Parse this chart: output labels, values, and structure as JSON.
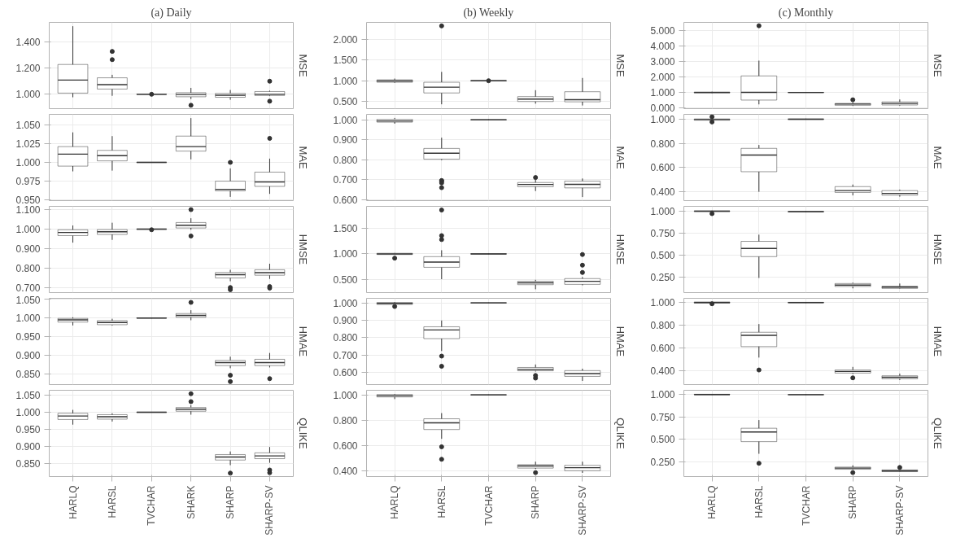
{
  "chart_data": [
    {
      "type": "box",
      "title": "(a) Daily",
      "ylabel": "MSE",
      "categories": [
        null,
        null,
        null,
        null,
        null,
        null
      ],
      "ylim": [
        0.89,
        1.55
      ],
      "yticks": [
        {
          "value": 1.0,
          "label": "1.000"
        },
        {
          "value": 1.2,
          "label": "1.200"
        },
        {
          "value": 1.4,
          "label": "1.400"
        }
      ],
      "grid": true,
      "tick_labels": "y",
      "boxes": [
        {
          "low": 0.977,
          "q1": 1.009,
          "median": 1.109,
          "q3": 1.228,
          "high": 1.521
        },
        {
          "low": 0.988,
          "q1": 1.04,
          "median": 1.074,
          "q3": 1.126,
          "high": 1.149,
          "outliers": [
            1.265,
            1.328
          ]
        },
        {
          "low": 0.998,
          "q1": 0.999,
          "median": 1.0,
          "q3": 1.001,
          "high": 1.002,
          "outliers": [
            1.0
          ]
        },
        {
          "low": 0.963,
          "q1": 0.981,
          "median": 0.998,
          "q3": 1.012,
          "high": 1.049,
          "outliers": [
            0.916
          ]
        },
        {
          "low": 0.958,
          "q1": 0.977,
          "median": 0.993,
          "q3": 1.007,
          "high": 1.033
        },
        {
          "low": 0.986,
          "q1": 0.991,
          "median": 1.0,
          "q3": 1.021,
          "high": 1.028,
          "outliers": [
            1.1,
            0.947
          ]
        }
      ]
    },
    {
      "type": "box",
      "title": "(b) Weekly",
      "ylabel": "MSE",
      "categories": [
        null,
        null,
        null,
        null,
        null
      ],
      "ylim": [
        0.322,
        2.416
      ],
      "yticks": [
        {
          "value": 0.5,
          "label": "0.500"
        },
        {
          "value": 1.0,
          "label": "1.000"
        },
        {
          "value": 1.5,
          "label": "1.500"
        },
        {
          "value": 2.0,
          "label": "2.000"
        }
      ],
      "grid": true,
      "tick_labels": "y",
      "boxes": [
        {
          "low": 0.948,
          "q1": 0.963,
          "median": 0.993,
          "q3": 1.022,
          "high": 1.052
        },
        {
          "low": 0.428,
          "q1": 0.703,
          "median": 0.844,
          "q3": 0.963,
          "high": 1.215,
          "outliers": [
            2.33
          ]
        },
        {
          "low": 0.99,
          "q1": 0.995,
          "median": 1.0,
          "q3": 1.005,
          "high": 1.01,
          "outliers": [
            1.0
          ]
        },
        {
          "low": 0.443,
          "q1": 0.495,
          "median": 0.554,
          "q3": 0.614,
          "high": 0.77
        },
        {
          "low": 0.399,
          "q1": 0.488,
          "median": 0.539,
          "q3": 0.733,
          "high": 1.067
        }
      ]
    },
    {
      "type": "box",
      "title": "(c) Monthly",
      "ylabel": "MSE",
      "categories": [
        null,
        null,
        null,
        null,
        null
      ],
      "ylim": [
        -0.04,
        5.512
      ],
      "yticks": [
        {
          "value": 0,
          "label": "0.000"
        },
        {
          "value": 1,
          "label": "1.000"
        },
        {
          "value": 2,
          "label": "2.000"
        },
        {
          "value": 3,
          "label": "3.000"
        },
        {
          "value": 4,
          "label": "4.000"
        },
        {
          "value": 5,
          "label": "5.000"
        }
      ],
      "grid": true,
      "tick_labels": "y",
      "boxes": [
        {
          "low": 0.95,
          "q1": 0.97,
          "median": 1.0,
          "q3": 1.03,
          "high": 1.05
        },
        {
          "low": 0.236,
          "q1": 0.512,
          "median": 1.004,
          "q3": 2.067,
          "high": 3.051,
          "outliers": [
            5.295
          ]
        },
        {
          "low": 0.98,
          "q1": 0.99,
          "median": 1.0,
          "q3": 1.01,
          "high": 1.02
        },
        {
          "low": 0.138,
          "q1": 0.177,
          "median": 0.256,
          "q3": 0.295,
          "high": 0.374,
          "outliers": [
            0.531
          ]
        },
        {
          "low": 0.157,
          "q1": 0.197,
          "median": 0.295,
          "q3": 0.394,
          "high": 0.551
        }
      ]
    },
    {
      "type": "box",
      "ylabel": "MAE",
      "categories": [
        null,
        null,
        null,
        null,
        null,
        null
      ],
      "ylim": [
        0.949,
        1.064
      ],
      "yticks": [
        {
          "value": 0.95,
          "label": "0.950"
        },
        {
          "value": 0.975,
          "label": "0.975"
        },
        {
          "value": 1.0,
          "label": "1.000"
        },
        {
          "value": 1.025,
          "label": "1.025"
        },
        {
          "value": 1.05,
          "label": "1.050"
        }
      ],
      "grid": true,
      "tick_labels": "y",
      "boxes": [
        {
          "low": 0.988,
          "q1": 0.995,
          "median": 1.011,
          "q3": 1.021,
          "high": 1.04
        },
        {
          "low": 0.989,
          "q1": 1.002,
          "median": 1.009,
          "q3": 1.016,
          "high": 1.035
        },
        {
          "low": 0.9995,
          "q1": 0.9998,
          "median": 1.0,
          "q3": 1.0002,
          "high": 1.0005
        },
        {
          "low": 1.004,
          "q1": 1.015,
          "median": 1.021,
          "q3": 1.035,
          "high": 1.059
        },
        {
          "low": 0.954,
          "q1": 0.962,
          "median": 0.964,
          "q3": 0.975,
          "high": 0.992,
          "outliers": [
            1.0
          ]
        },
        {
          "low": 0.958,
          "q1": 0.968,
          "median": 0.974,
          "q3": 0.987,
          "high": 1.005,
          "outliers": [
            1.032
          ]
        }
      ]
    },
    {
      "type": "box",
      "ylabel": "MAE",
      "categories": [
        null,
        null,
        null,
        null,
        null
      ],
      "ylim": [
        0.594,
        1.027
      ],
      "yticks": [
        {
          "value": 0.6,
          "label": "0.600"
        },
        {
          "value": 0.7,
          "label": "0.700"
        },
        {
          "value": 0.8,
          "label": "0.800"
        },
        {
          "value": 0.9,
          "label": "0.900"
        },
        {
          "value": 1.0,
          "label": "1.000"
        }
      ],
      "grid": true,
      "tick_labels": "y",
      "boxes": [
        {
          "low": 0.98,
          "q1": 0.988,
          "median": 0.994,
          "q3": 1.002,
          "high": 1.009
        },
        {
          "low": 0.797,
          "q1": 0.802,
          "median": 0.832,
          "q3": 0.856,
          "high": 0.91,
          "outliers": [
            0.695,
            0.692,
            0.683,
            0.659
          ]
        },
        {
          "low": 0.998,
          "q1": 0.999,
          "median": 1.0,
          "q3": 1.001,
          "high": 1.002
        },
        {
          "low": 0.642,
          "q1": 0.664,
          "median": 0.675,
          "q3": 0.685,
          "high": 0.699,
          "outliers": [
            0.71
          ]
        },
        {
          "low": 0.612,
          "q1": 0.658,
          "median": 0.676,
          "q3": 0.692,
          "high": 0.705
        }
      ]
    },
    {
      "type": "box",
      "ylabel": "MAE",
      "categories": [
        null,
        null,
        null,
        null,
        null
      ],
      "ylim": [
        0.327,
        1.04
      ],
      "yticks": [
        {
          "value": 0.4,
          "label": "0.400"
        },
        {
          "value": 0.6,
          "label": "0.600"
        },
        {
          "value": 0.8,
          "label": "0.800"
        },
        {
          "value": 1.0,
          "label": "1.000"
        }
      ],
      "grid": true,
      "tick_labels": "y",
      "boxes": [
        {
          "low": 0.99,
          "q1": 0.992,
          "median": 0.997,
          "q3": 1.002,
          "high": 1.008,
          "outliers": [
            1.02,
            0.977
          ]
        },
        {
          "low": 0.4,
          "q1": 0.566,
          "median": 0.704,
          "q3": 0.759,
          "high": 0.787
        },
        {
          "low": 0.996,
          "q1": 0.998,
          "median": 1.0,
          "q3": 1.002,
          "high": 1.004
        },
        {
          "low": 0.37,
          "q1": 0.395,
          "median": 0.41,
          "q3": 0.443,
          "high": 0.46
        },
        {
          "low": 0.36,
          "q1": 0.372,
          "median": 0.387,
          "q3": 0.41,
          "high": 0.418
        }
      ]
    },
    {
      "type": "box",
      "ylabel": "HMSE",
      "categories": [
        null,
        null,
        null,
        null,
        null,
        null
      ],
      "ylim": [
        0.675,
        1.117
      ],
      "yticks": [
        {
          "value": 0.7,
          "label": "0.700"
        },
        {
          "value": 0.8,
          "label": "0.800"
        },
        {
          "value": 0.9,
          "label": "0.900"
        },
        {
          "value": 1.0,
          "label": "1.000"
        },
        {
          "value": 1.1,
          "label": "1.100"
        }
      ],
      "grid": true,
      "tick_labels": "y",
      "boxes": [
        {
          "low": 0.931,
          "q1": 0.967,
          "median": 0.983,
          "q3": 0.997,
          "high": 1.019
        },
        {
          "low": 0.945,
          "q1": 0.973,
          "median": 0.987,
          "q3": 0.998,
          "high": 1.033
        },
        {
          "low": 0.998,
          "q1": 0.999,
          "median": 1.0,
          "q3": 1.001,
          "high": 1.002,
          "outliers": [
            0.997
          ]
        },
        {
          "low": 0.997,
          "q1": 1.006,
          "median": 1.02,
          "q3": 1.034,
          "high": 1.056,
          "outliers": [
            1.1,
            0.965
          ]
        },
        {
          "low": 0.733,
          "q1": 0.75,
          "median": 0.767,
          "q3": 0.778,
          "high": 0.792,
          "outliers": [
            0.701,
            0.69
          ]
        },
        {
          "low": 0.745,
          "q1": 0.764,
          "median": 0.777,
          "q3": 0.792,
          "high": 0.823,
          "outliers": [
            0.706,
            0.698
          ]
        }
      ]
    },
    {
      "type": "box",
      "ylabel": "HMSE",
      "categories": [
        null,
        null,
        null,
        null,
        null
      ],
      "ylim": [
        0.235,
        1.94
      ],
      "yticks": [
        {
          "value": 0.5,
          "label": "0.500"
        },
        {
          "value": 1.0,
          "label": "1.000"
        },
        {
          "value": 1.5,
          "label": "1.500"
        }
      ],
      "grid": true,
      "tick_labels": "y",
      "boxes": [
        {
          "low": 0.982,
          "q1": 0.988,
          "median": 1.0,
          "q3": 1.012,
          "high": 1.018,
          "outliers": [
            0.916
          ]
        },
        {
          "low": 0.5,
          "q1": 0.735,
          "median": 0.837,
          "q3": 0.946,
          "high": 1.072,
          "outliers": [
            1.867,
            1.361,
            1.283
          ]
        },
        {
          "low": 0.99,
          "q1": 0.995,
          "median": 1.0,
          "q3": 1.005,
          "high": 1.01
        },
        {
          "low": 0.301,
          "q1": 0.392,
          "median": 0.428,
          "q3": 0.458,
          "high": 0.488
        },
        {
          "low": 0.38,
          "q1": 0.398,
          "median": 0.458,
          "q3": 0.512,
          "high": 0.542,
          "outliers": [
            0.633,
            0.777,
            0.988
          ]
        }
      ]
    },
    {
      "type": "box",
      "ylabel": "HMSE",
      "categories": [
        null,
        null,
        null,
        null,
        null
      ],
      "ylim": [
        0.077,
        1.055
      ],
      "yticks": [
        {
          "value": 0.25,
          "label": "0.250"
        },
        {
          "value": 0.5,
          "label": "0.500"
        },
        {
          "value": 0.75,
          "label": "0.750"
        },
        {
          "value": 1.0,
          "label": "1.000"
        }
      ],
      "grid": true,
      "tick_labels": "y",
      "boxes": [
        {
          "low": 0.993,
          "q1": 0.997,
          "median": 1.0,
          "q3": 1.003,
          "high": 1.007,
          "outliers": [
            0.972
          ]
        },
        {
          "low": 0.243,
          "q1": 0.485,
          "median": 0.578,
          "q3": 0.658,
          "high": 0.734
        },
        {
          "low": 0.991,
          "q1": 0.993,
          "median": 0.995,
          "q3": 0.997,
          "high": 0.999
        },
        {
          "low": 0.125,
          "q1": 0.146,
          "median": 0.163,
          "q3": 0.18,
          "high": 0.19
        },
        {
          "low": 0.122,
          "q1": 0.125,
          "median": 0.139,
          "q3": 0.149,
          "high": 0.18
        }
      ]
    },
    {
      "type": "box",
      "ylabel": "HMAE",
      "categories": [
        null,
        null,
        null,
        null,
        null,
        null
      ],
      "ylim": [
        0.821,
        1.053
      ],
      "yticks": [
        {
          "value": 0.85,
          "label": "0.850"
        },
        {
          "value": 0.9,
          "label": "0.900"
        },
        {
          "value": 0.95,
          "label": "0.950"
        },
        {
          "value": 1.0,
          "label": "1.000"
        },
        {
          "value": 1.05,
          "label": "1.050"
        }
      ],
      "grid": true,
      "tick_labels": "y",
      "boxes": [
        {
          "low": 0.98,
          "q1": 0.989,
          "median": 0.995,
          "q3": 0.999,
          "high": 1.002
        },
        {
          "low": 0.98,
          "q1": 0.982,
          "median": 0.988,
          "q3": 0.993,
          "high": 0.998
        },
        {
          "low": 0.999,
          "q1": 0.9995,
          "median": 1.0,
          "q3": 1.0005,
          "high": 1.001
        },
        {
          "low": 0.994,
          "q1": 1.002,
          "median": 1.007,
          "q3": 1.012,
          "high": 1.021,
          "outliers": [
            1.042
          ]
        },
        {
          "low": 0.865,
          "q1": 0.872,
          "median": 0.88,
          "q3": 0.886,
          "high": 0.896,
          "outliers": [
            0.846,
            0.829
          ]
        },
        {
          "low": 0.867,
          "q1": 0.872,
          "median": 0.88,
          "q3": 0.889,
          "high": 0.906,
          "outliers": [
            0.837
          ]
        }
      ]
    },
    {
      "type": "box",
      "ylabel": "HMAE",
      "categories": [
        null,
        null,
        null,
        null,
        null
      ],
      "ylim": [
        0.532,
        1.026
      ],
      "yticks": [
        {
          "value": 0.6,
          "label": "0.600"
        },
        {
          "value": 0.7,
          "label": "0.700"
        },
        {
          "value": 0.8,
          "label": "0.800"
        },
        {
          "value": 0.9,
          "label": "0.900"
        },
        {
          "value": 1.0,
          "label": "1.000"
        }
      ],
      "grid": true,
      "tick_labels": "y",
      "boxes": [
        {
          "low": 0.988,
          "q1": 0.991,
          "median": 0.997,
          "q3": 1.002,
          "high": 1.005,
          "outliers": [
            0.979
          ]
        },
        {
          "low": 0.724,
          "q1": 0.795,
          "median": 0.845,
          "q3": 0.863,
          "high": 0.899,
          "outliers": [
            0.695,
            0.637
          ]
        },
        {
          "low": 0.998,
          "q1": 0.999,
          "median": 1.0,
          "q3": 1.001,
          "high": 1.002
        },
        {
          "low": 0.607,
          "q1": 0.611,
          "median": 0.619,
          "q3": 0.63,
          "high": 0.647,
          "outliers": [
            0.584,
            0.569
          ]
        },
        {
          "low": 0.553,
          "q1": 0.579,
          "median": 0.595,
          "q3": 0.612,
          "high": 0.623
        }
      ]
    },
    {
      "type": "box",
      "ylabel": "HMAE",
      "categories": [
        null,
        null,
        null,
        null,
        null
      ],
      "ylim": [
        0.28,
        1.037
      ],
      "yticks": [
        {
          "value": 0.4,
          "label": "0.400"
        },
        {
          "value": 0.6,
          "label": "0.600"
        },
        {
          "value": 0.8,
          "label": "0.800"
        },
        {
          "value": 1.0,
          "label": "1.000"
        }
      ],
      "grid": true,
      "tick_labels": "y",
      "boxes": [
        {
          "low": 0.992,
          "q1": 0.995,
          "median": 1.0,
          "q3": 1.005,
          "high": 1.008,
          "outliers": [
            0.989
          ]
        },
        {
          "low": 0.517,
          "q1": 0.613,
          "median": 0.712,
          "q3": 0.739,
          "high": 0.811,
          "outliers": [
            0.408
          ]
        },
        {
          "low": 0.996,
          "q1": 0.998,
          "median": 1.0,
          "q3": 1.002,
          "high": 1.004
        },
        {
          "low": 0.373,
          "q1": 0.381,
          "median": 0.395,
          "q3": 0.408,
          "high": 0.435,
          "outliers": [
            0.339
          ]
        },
        {
          "low": 0.32,
          "q1": 0.331,
          "median": 0.344,
          "q3": 0.357,
          "high": 0.376
        }
      ]
    },
    {
      "type": "box",
      "ylabel": "QLIKE",
      "categories": [
        "HARLQ",
        "HARSL",
        "TVCHAR",
        "SHARK",
        "SHARP",
        "SHARP-SV"
      ],
      "ylim": [
        0.813,
        1.064
      ],
      "yticks": [
        {
          "value": 0.85,
          "label": "0.850"
        },
        {
          "value": 0.9,
          "label": "0.900"
        },
        {
          "value": 0.95,
          "label": "0.950"
        },
        {
          "value": 1.0,
          "label": "1.000"
        },
        {
          "value": 1.05,
          "label": "1.050"
        }
      ],
      "grid": true,
      "boxes": [
        {
          "low": 0.964,
          "q1": 0.979,
          "median": 0.989,
          "q3": 0.997,
          "high": 1.007
        },
        {
          "low": 0.973,
          "q1": 0.98,
          "median": 0.987,
          "q3": 0.993,
          "high": 0.997
        },
        {
          "low": 0.999,
          "q1": 0.9995,
          "median": 1.0,
          "q3": 1.0005,
          "high": 1.001
        },
        {
          "low": 0.993,
          "q1": 1.003,
          "median": 1.009,
          "q3": 1.014,
          "high": 1.021,
          "outliers": [
            1.054,
            1.031
          ]
        },
        {
          "low": 0.846,
          "q1": 0.861,
          "median": 0.87,
          "q3": 0.877,
          "high": 0.886,
          "outliers": [
            0.823
          ]
        },
        {
          "low": 0.853,
          "q1": 0.865,
          "median": 0.873,
          "q3": 0.882,
          "high": 0.899,
          "outliers": [
            0.832,
            0.824
          ]
        }
      ]
    },
    {
      "type": "box",
      "ylabel": "QLIKE",
      "categories": [
        "HARLQ",
        "HARSL",
        "TVCHAR",
        "SHARP",
        "SHARP-SV"
      ],
      "ylim": [
        0.352,
        1.036
      ],
      "yticks": [
        {
          "value": 0.4,
          "label": "0.400"
        },
        {
          "value": 0.6,
          "label": "0.600"
        },
        {
          "value": 0.8,
          "label": "0.800"
        },
        {
          "value": 1.0,
          "label": "1.000"
        }
      ],
      "grid": true,
      "boxes": [
        {
          "low": 0.966,
          "q1": 0.983,
          "median": 0.993,
          "q3": 1.002,
          "high": 1.007
        },
        {
          "low": 0.651,
          "q1": 0.725,
          "median": 0.778,
          "q3": 0.81,
          "high": 0.855,
          "outliers": [
            0.588,
            0.489
          ]
        },
        {
          "low": 0.998,
          "q1": 0.999,
          "median": 1.0,
          "q3": 1.001,
          "high": 1.002
        },
        {
          "low": 0.412,
          "q1": 0.419,
          "median": 0.436,
          "q3": 0.446,
          "high": 0.47,
          "outliers": [
            0.383
          ]
        },
        {
          "low": 0.381,
          "q1": 0.398,
          "median": 0.422,
          "q3": 0.441,
          "high": 0.47
        }
      ]
    },
    {
      "type": "box",
      "ylabel": "QLIKE",
      "categories": [
        "HARLQ",
        "HARSL",
        "TVCHAR",
        "SHARP",
        "SHARP-SV"
      ],
      "ylim": [
        0.088,
        1.047
      ],
      "yticks": [
        {
          "value": 0.25,
          "label": "0.250"
        },
        {
          "value": 0.5,
          "label": "0.500"
        },
        {
          "value": 0.75,
          "label": "0.750"
        },
        {
          "value": 1.0,
          "label": "1.000"
        }
      ],
      "grid": true,
      "boxes": [
        {
          "low": 0.995,
          "q1": 0.997,
          "median": 1.0,
          "q3": 1.003,
          "high": 1.005
        },
        {
          "low": 0.341,
          "q1": 0.476,
          "median": 0.584,
          "q3": 0.625,
          "high": 0.716,
          "outliers": [
            0.236
          ]
        },
        {
          "low": 0.994,
          "q1": 0.996,
          "median": 0.998,
          "q3": 1.0,
          "high": 1.002
        },
        {
          "low": 0.162,
          "q1": 0.169,
          "median": 0.182,
          "q3": 0.193,
          "high": 0.213,
          "outliers": [
            0.132
          ]
        },
        {
          "low": 0.139,
          "q1": 0.142,
          "median": 0.152,
          "q3": 0.162,
          "high": 0.179,
          "outliers": [
            0.189
          ]
        }
      ]
    }
  ]
}
